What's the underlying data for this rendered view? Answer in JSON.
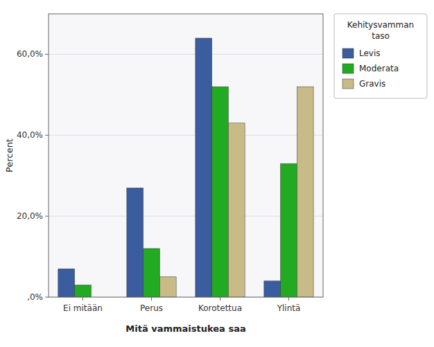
{
  "chart_data": {
    "type": "bar",
    "categories": [
      "Ei mitään",
      "Perus",
      "Korotettua",
      "Ylintä"
    ],
    "series": [
      {
        "name": "Levis",
        "color": "#3a5da0",
        "values": [
          7.0,
          27.0,
          64.0,
          4.0
        ]
      },
      {
        "name": "Moderata",
        "color": "#22aa22",
        "values": [
          3.0,
          12.0,
          52.0,
          33.0
        ]
      },
      {
        "name": "Gravis",
        "color": "#c8bb87",
        "values": [
          0.0,
          5.0,
          43.0,
          52.0
        ]
      }
    ],
    "xlabel": "Mitä vammaistukea saa",
    "ylabel": "Percent",
    "legend_title": "Kehitysvamman\ntaso",
    "ylim": [
      0,
      70
    ],
    "yticks": [
      {
        "value": 0,
        "label": ",0%"
      },
      {
        "value": 20,
        "label": "20,0%"
      },
      {
        "value": 40,
        "label": "40,0%"
      },
      {
        "value": 60,
        "label": "60,0%"
      }
    ],
    "grid": true,
    "legend": "right"
  }
}
